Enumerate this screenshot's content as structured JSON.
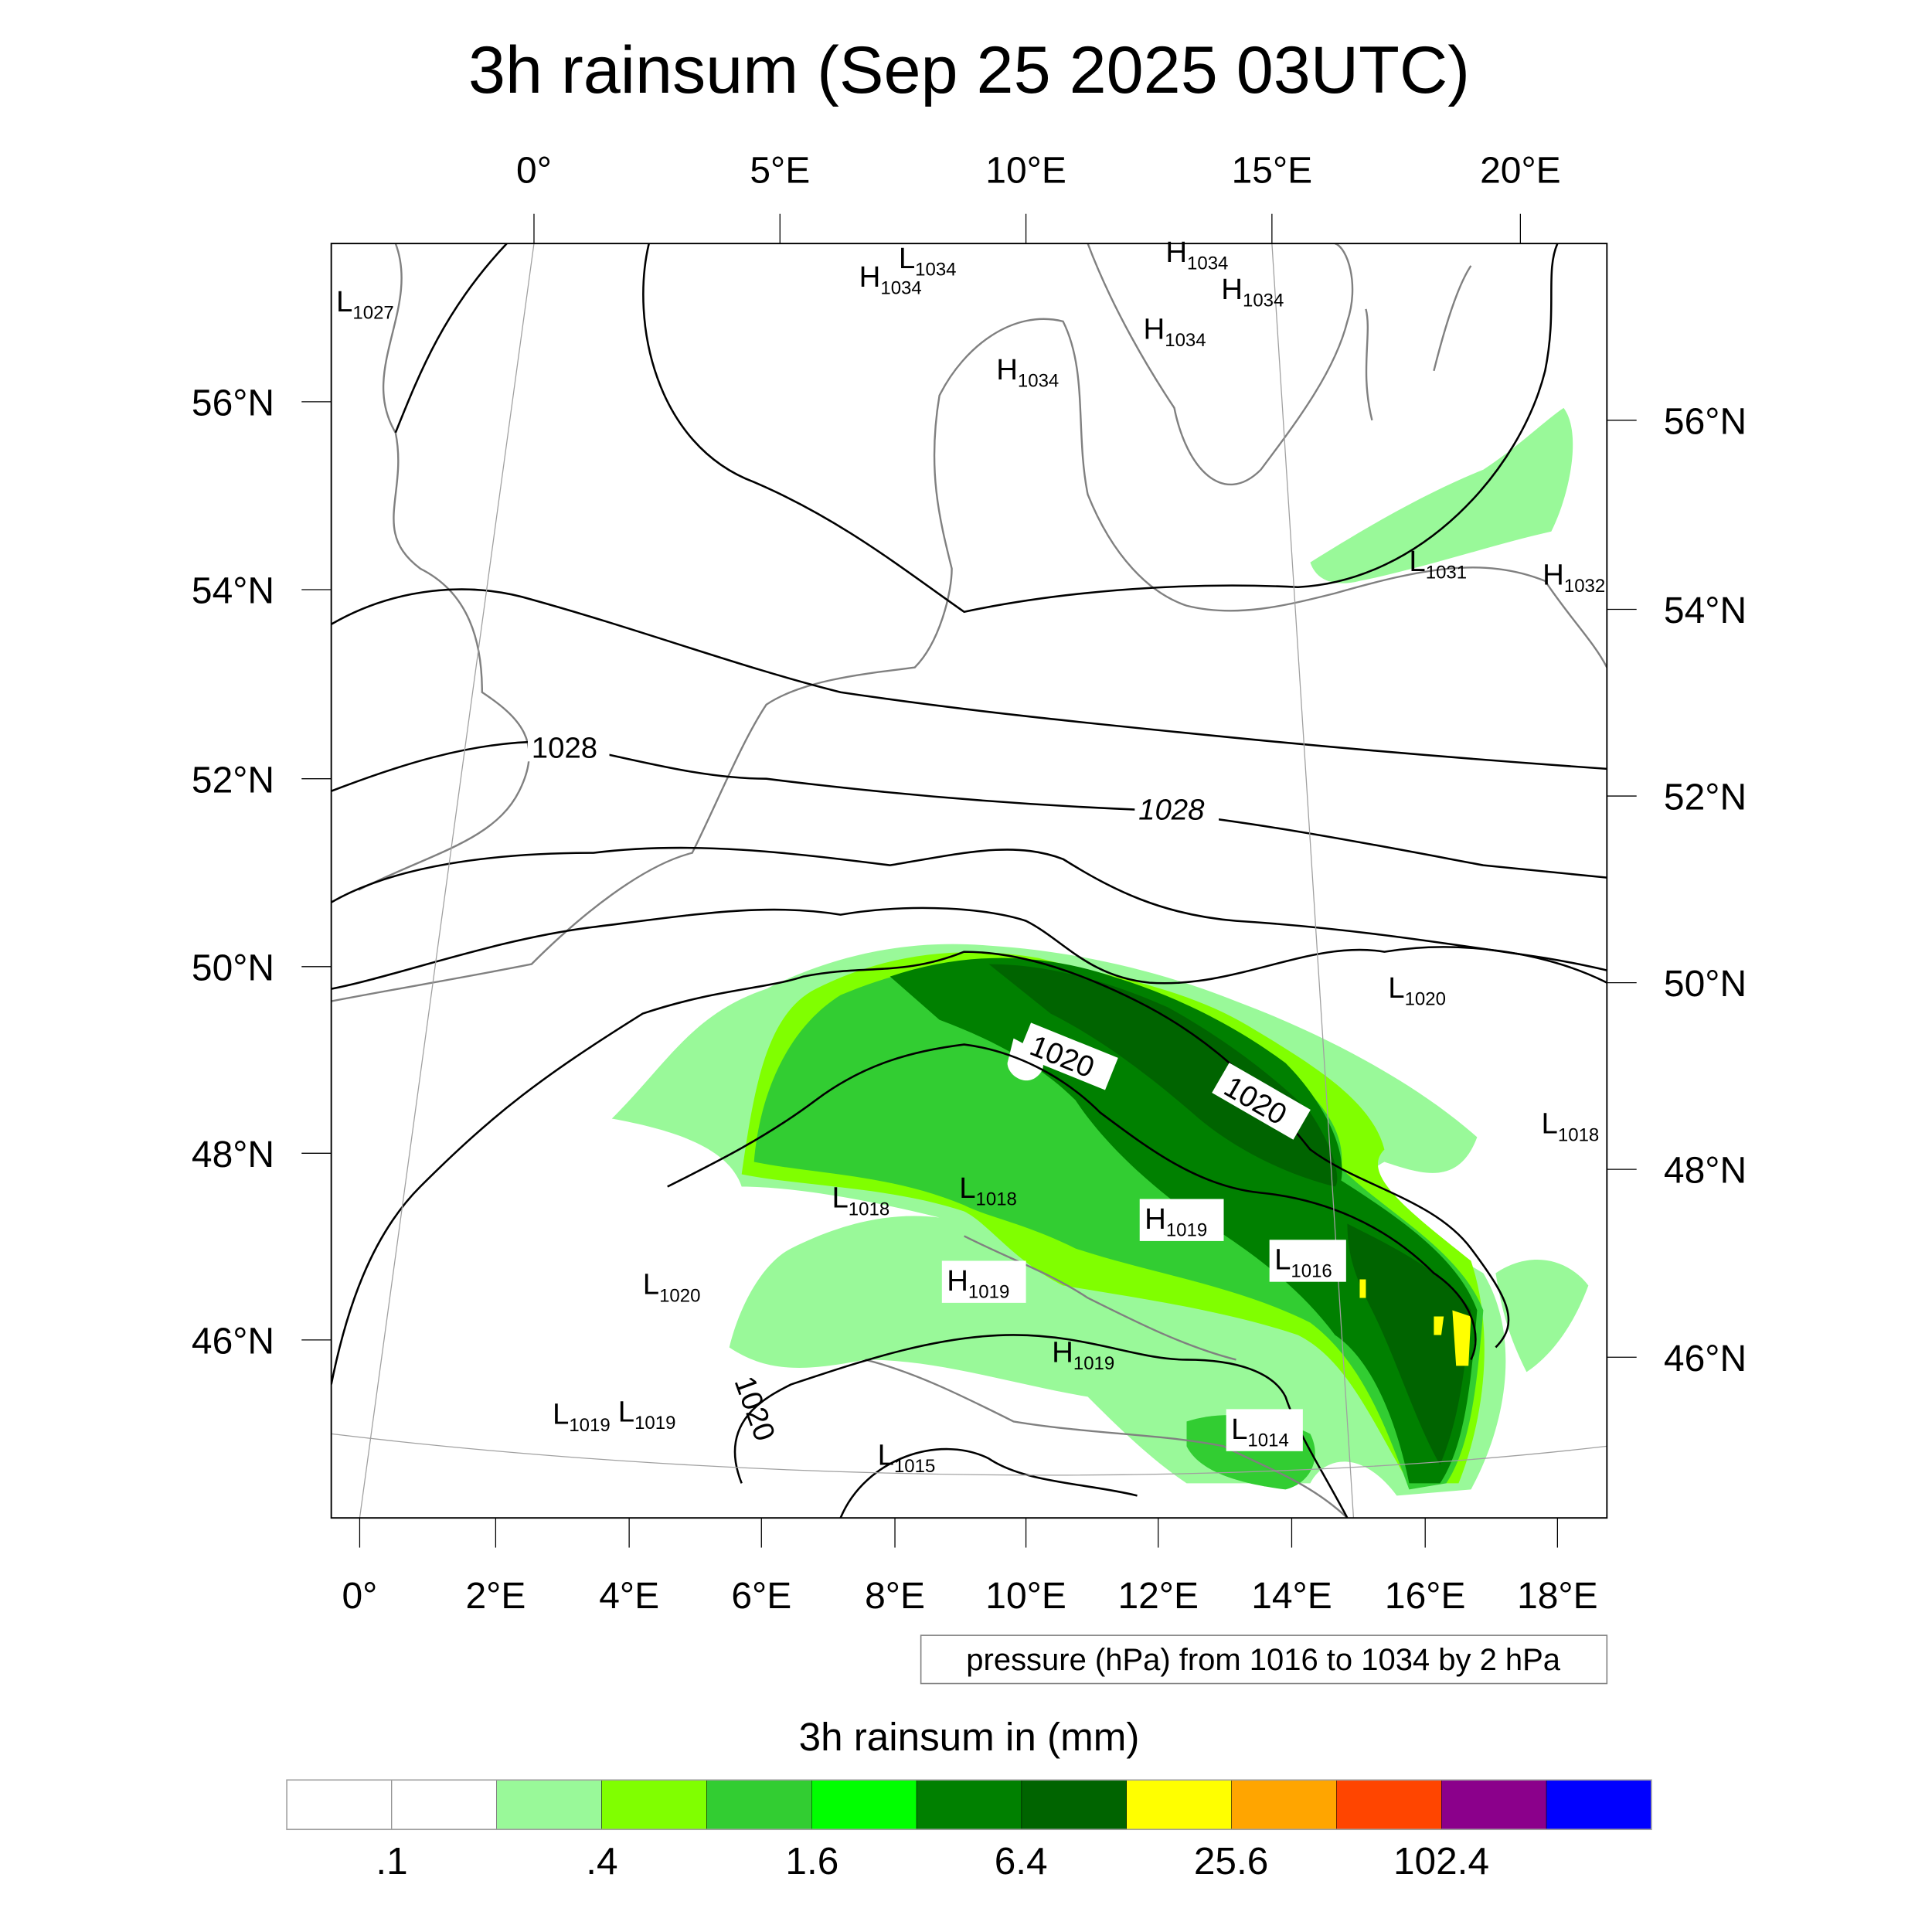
{
  "title": "3h rainsum (Sep 25 2025 03UTC)",
  "top_lon_labels": [
    "0°",
    "5°E",
    "10°E",
    "15°E",
    "20°E"
  ],
  "bottom_lon_labels": [
    "0°",
    "2°E",
    "4°E",
    "6°E",
    "8°E",
    "10°E",
    "12°E",
    "14°E",
    "16°E",
    "18°E"
  ],
  "left_lat_labels": [
    "56°N",
    "54°N",
    "52°N",
    "50°N",
    "48°N",
    "46°N"
  ],
  "right_lat_labels": [
    "56°N",
    "54°N",
    "52°N",
    "50°N",
    "48°N",
    "46°N"
  ],
  "contour_info": "pressure (hPa) from 1016 to 1034 by 2 hPa",
  "colorbar": {
    "title": "3h rainsum in (mm)",
    "colors": [
      "#ffffff",
      "#ffffff",
      "#99f999",
      "#80ff00",
      "#32cd32",
      "#00ff00",
      "#008000",
      "#006400",
      "#ffff00",
      "#ffa500",
      "#ff4500",
      "#8b008b",
      "#0000ff"
    ],
    "labels": [
      ".1",
      ".4",
      "1.6",
      "6.4",
      "25.6",
      "102.4"
    ]
  },
  "pressure_labels": [
    {
      "t": "L",
      "v": "1027"
    },
    {
      "t": "L",
      "v": "1034"
    },
    {
      "t": "H",
      "v": "1034"
    },
    {
      "t": "H",
      "v": "1034"
    },
    {
      "t": "H",
      "v": "1034"
    },
    {
      "t": "H",
      "v": "1034"
    },
    {
      "t": "H",
      "v": "1034"
    },
    {
      "t": "L",
      "v": "1031"
    },
    {
      "t": "H",
      "v": "1032"
    },
    {
      "t": "L",
      "v": "1020"
    },
    {
      "t": "L",
      "v": "1018"
    },
    {
      "t": "L",
      "v": "1018"
    },
    {
      "t": "L",
      "v": "1018"
    },
    {
      "t": "H",
      "v": "1019"
    },
    {
      "t": "L",
      "v": "1016"
    },
    {
      "t": "H",
      "v": "1019"
    },
    {
      "t": "L",
      "v": "1020"
    },
    {
      "t": "H",
      "v": "1019"
    },
    {
      "t": "L",
      "v": "1019"
    },
    {
      "t": "L",
      "v": "1019"
    },
    {
      "t": "L",
      "v": "1015"
    },
    {
      "t": "L",
      "v": "1014"
    }
  ],
  "contour_labels": [
    "1028",
    "1028",
    "1020",
    "1020",
    "1020"
  ]
}
